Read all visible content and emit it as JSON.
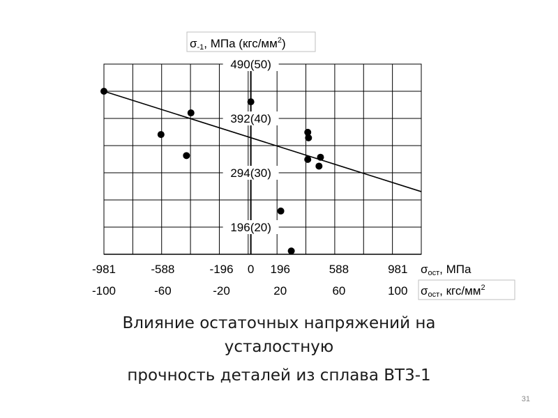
{
  "chart_data": {
    "type": "scatter",
    "y_axis_label": {
      "sym": "σ",
      "sub": "-1",
      "rest": ", МПа (кгс/мм",
      "sup": "2",
      "end": ")"
    },
    "x_axis_label_mpa": {
      "sym": "σ",
      "sub": "ост",
      "rest": ", МПа"
    },
    "x_axis_label_kgf": {
      "sym": "σ",
      "sub": "ост",
      "rest": ", кгс/мм",
      "sup": "2"
    },
    "x_ticks_mpa": [
      {
        "value": -981,
        "label": "-981"
      },
      {
        "value": -588,
        "label": "-588"
      },
      {
        "value": -196,
        "label": "-196"
      },
      {
        "value": 0,
        "label": "0"
      },
      {
        "value": 196,
        "label": "196"
      },
      {
        "value": 588,
        "label": "588"
      },
      {
        "value": 981,
        "label": "981"
      }
    ],
    "x_ticks_kgf": [
      {
        "value": -981,
        "label": "-100"
      },
      {
        "value": -588,
        "label": "-60"
      },
      {
        "value": -196,
        "label": "-20"
      },
      {
        "value": 196,
        "label": "20"
      },
      {
        "value": 588,
        "label": "60"
      },
      {
        "value": 981,
        "label": "100"
      }
    ],
    "y_ticks": [
      {
        "value": 490,
        "label": "490(50)"
      },
      {
        "value": 392,
        "label": "392(40)"
      },
      {
        "value": 294,
        "label": "294(30)"
      },
      {
        "value": 196,
        "label": "196(20)"
      }
    ],
    "xlim": [
      -981,
      1138
    ],
    "ylim": [
      147,
      490
    ],
    "grid": true,
    "points": [
      {
        "x": -981,
        "y": 441
      },
      {
        "x": -600,
        "y": 363
      },
      {
        "x": -400,
        "y": 402
      },
      {
        "x": -430,
        "y": 325
      },
      {
        "x": 0,
        "y": 422
      },
      {
        "x": 380,
        "y": 367
      },
      {
        "x": 385,
        "y": 357
      },
      {
        "x": 380,
        "y": 318
      },
      {
        "x": 465,
        "y": 322
      },
      {
        "x": 455,
        "y": 306
      },
      {
        "x": 200,
        "y": 225
      },
      {
        "x": 270,
        "y": 153
      }
    ],
    "trend_line": {
      "x": [
        -981,
        1138
      ],
      "y": [
        441,
        260
      ]
    }
  },
  "caption": {
    "line1": "Влияние остаточных напряжений на",
    "line2": "усталостную",
    "line3": "прочность деталей из сплава ВТ3-1"
  },
  "slide_number": "31"
}
